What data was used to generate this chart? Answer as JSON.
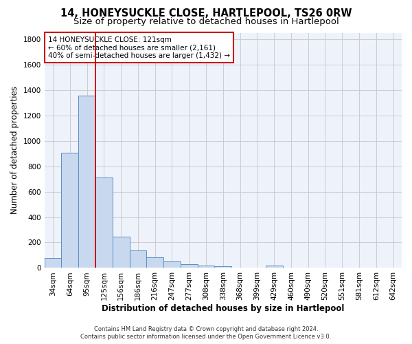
{
  "title": "14, HONEYSUCKLE CLOSE, HARTLEPOOL, TS26 0RW",
  "subtitle": "Size of property relative to detached houses in Hartlepool",
  "xlabel": "Distribution of detached houses by size in Hartlepool",
  "ylabel": "Number of detached properties",
  "bar_labels": [
    "34sqm",
    "64sqm",
    "95sqm",
    "125sqm",
    "156sqm",
    "186sqm",
    "216sqm",
    "247sqm",
    "277sqm",
    "308sqm",
    "338sqm",
    "368sqm",
    "399sqm",
    "429sqm",
    "460sqm",
    "490sqm",
    "520sqm",
    "551sqm",
    "581sqm",
    "612sqm",
    "642sqm"
  ],
  "bar_values": [
    80,
    905,
    1355,
    710,
    245,
    140,
    85,
    50,
    32,
    20,
    15,
    0,
    0,
    18,
    0,
    0,
    0,
    0,
    0,
    0,
    0
  ],
  "bar_color": "#c8d8ee",
  "bar_edge_color": "#5b8ec4",
  "grid_color": "#c8c8c8",
  "background_color": "#ffffff",
  "plot_bg_color": "#eef2fa",
  "annotation_label": "14 HONEYSUCKLE CLOSE: 121sqm",
  "annotation_line1": "← 60% of detached houses are smaller (2,161)",
  "annotation_line2": "40% of semi-detached houses are larger (1,432) →",
  "annotation_box_color": "#ffffff",
  "annotation_box_edge_color": "#cc0000",
  "vline_color": "#cc0000",
  "footnote1": "Contains HM Land Registry data © Crown copyright and database right 2024.",
  "footnote2": "Contains public sector information licensed under the Open Government Licence v3.0.",
  "ylim": [
    0,
    1850
  ],
  "yticks": [
    0,
    200,
    400,
    600,
    800,
    1000,
    1200,
    1400,
    1600,
    1800
  ],
  "title_fontsize": 10.5,
  "subtitle_fontsize": 9.5,
  "axis_label_fontsize": 8.5,
  "tick_fontsize": 7.5,
  "annot_fontsize": 7.5,
  "footnote_fontsize": 6.0
}
